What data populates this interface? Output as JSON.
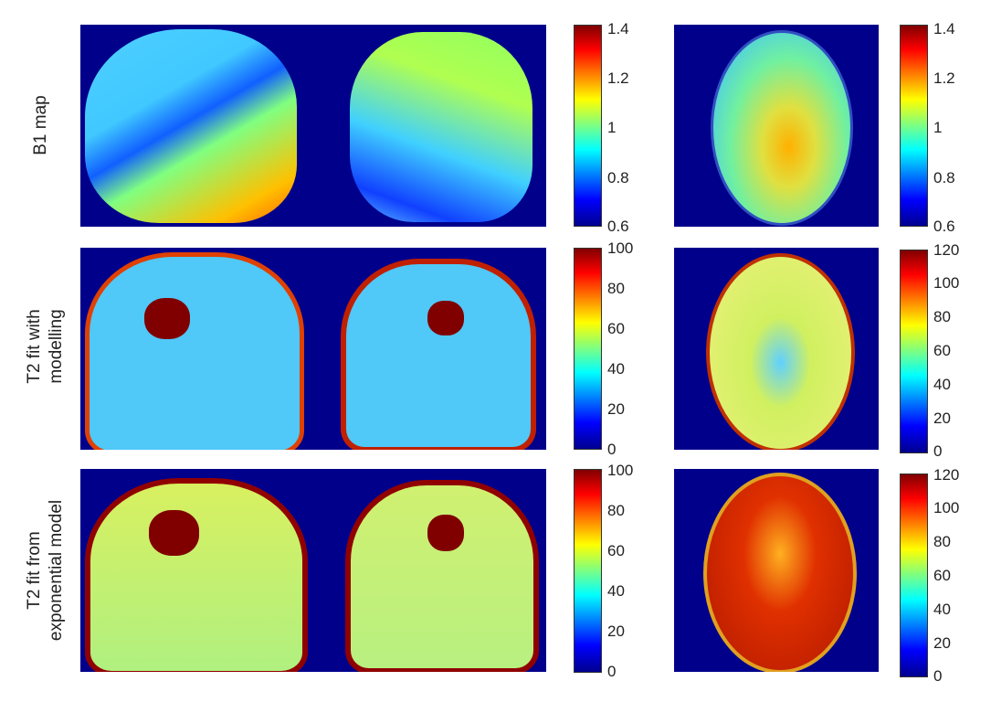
{
  "row_labels": [
    "B1 map",
    "T2 fit with\nmodelling",
    "T2 fit from\nexponential model"
  ],
  "row_label_lines": [
    [
      "B1 map"
    ],
    [
      "T2 fit with",
      "modelling"
    ],
    [
      "T2 fit from",
      "exponential model"
    ]
  ],
  "colorbars": [
    {
      "ticks": [
        "1.4",
        "1.2",
        "1",
        "0.8",
        "0.6"
      ]
    },
    {
      "ticks": [
        "1.4",
        "1.2",
        "1",
        "0.8",
        "0.6"
      ]
    },
    {
      "ticks": [
        "100",
        "80",
        "60",
        "40",
        "20",
        "0"
      ]
    },
    {
      "ticks": [
        "120",
        "100",
        "80",
        "60",
        "40",
        "20",
        "0"
      ]
    },
    {
      "ticks": [
        "100",
        "80",
        "60",
        "40",
        "20",
        "0"
      ]
    },
    {
      "ticks": [
        "120",
        "100",
        "80",
        "60",
        "40",
        "20",
        "0"
      ]
    }
  ],
  "colormap": "jet",
  "colors": {
    "background": "#00008b"
  }
}
